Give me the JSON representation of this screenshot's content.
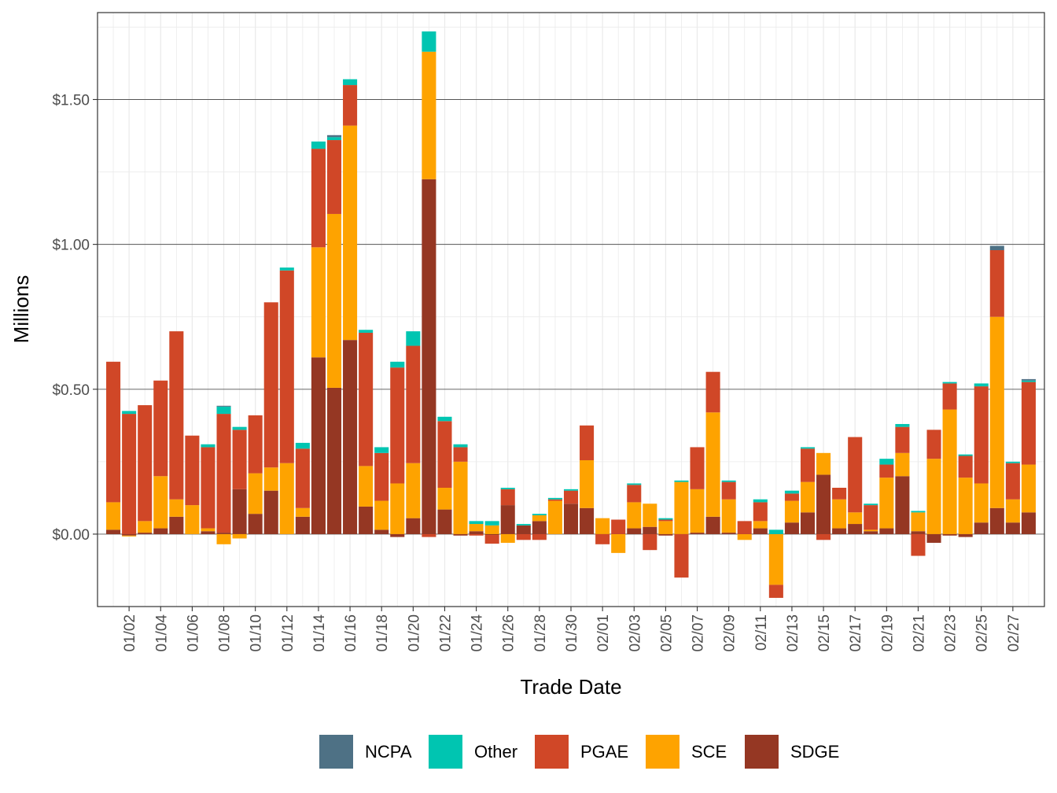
{
  "chart_data": {
    "type": "bar",
    "stacked": true,
    "title": "",
    "xlabel": "Trade Date",
    "ylabel": "Millions",
    "ylim": [
      -0.25,
      1.8
    ],
    "yticks": [
      0.0,
      0.5,
      1.0,
      1.5
    ],
    "ytick_labels": [
      "$0.00",
      "$0.50",
      "$1.00",
      "$1.50"
    ],
    "grid": true,
    "legend_position": "bottom",
    "categories": [
      "01/01",
      "01/02",
      "01/03",
      "01/04",
      "01/05",
      "01/06",
      "01/07",
      "01/08",
      "01/09",
      "01/10",
      "01/11",
      "01/12",
      "01/13",
      "01/14",
      "01/15",
      "01/16",
      "01/17",
      "01/18",
      "01/19",
      "01/20",
      "01/21",
      "01/22",
      "01/23",
      "01/24",
      "01/25",
      "01/26",
      "01/27",
      "01/28",
      "01/29",
      "01/30",
      "01/31",
      "02/01",
      "02/02",
      "02/03",
      "02/04",
      "02/05",
      "02/06",
      "02/07",
      "02/08",
      "02/09",
      "02/10",
      "02/11",
      "02/12",
      "02/13",
      "02/14",
      "02/15",
      "02/16",
      "02/17",
      "02/18",
      "02/19",
      "02/20",
      "02/21",
      "02/22",
      "02/23",
      "02/24",
      "02/25",
      "02/26",
      "02/27",
      "02/28"
    ],
    "x_tick_labels": [
      "01/02",
      "01/04",
      "01/06",
      "01/08",
      "01/10",
      "01/12",
      "01/14",
      "01/16",
      "01/18",
      "01/20",
      "01/22",
      "01/24",
      "01/26",
      "01/28",
      "01/30",
      "02/01",
      "02/03",
      "02/05",
      "02/07",
      "02/09",
      "02/11",
      "02/13",
      "02/15",
      "02/17",
      "02/19",
      "02/21",
      "02/23",
      "02/25",
      "02/27"
    ],
    "series": [
      {
        "name": "SDGE",
        "color": "#953723",
        "values": [
          0.015,
          -0.005,
          0.005,
          0.02,
          0.06,
          0.0,
          0.01,
          0.005,
          0.155,
          0.07,
          0.15,
          0.0,
          0.06,
          0.61,
          0.505,
          0.67,
          0.095,
          0.015,
          -0.01,
          0.055,
          1.225,
          0.085,
          -0.005,
          0.01,
          -0.003,
          0.1,
          0.03,
          0.045,
          0.0,
          0.105,
          0.09,
          0.0,
          0.0,
          0.02,
          0.025,
          -0.005,
          0.0,
          0.005,
          0.06,
          0.005,
          0.0,
          0.02,
          0.0,
          0.04,
          0.075,
          0.205,
          0.02,
          0.035,
          0.01,
          0.02,
          0.2,
          0.01,
          -0.03,
          -0.005,
          -0.01,
          0.04,
          0.09,
          0.04,
          0.075
        ]
      },
      {
        "name": "SCE",
        "color": "#fea300",
        "values": [
          0.095,
          -0.003,
          0.04,
          0.18,
          0.06,
          0.1,
          0.01,
          -0.035,
          -0.015,
          0.14,
          0.08,
          0.245,
          0.03,
          0.38,
          0.6,
          0.74,
          0.14,
          0.1,
          0.175,
          0.19,
          0.44,
          0.075,
          0.25,
          0.025,
          0.03,
          -0.03,
          0.0,
          0.02,
          0.115,
          0.0,
          0.165,
          0.055,
          -0.065,
          0.09,
          0.08,
          0.045,
          0.18,
          0.15,
          0.36,
          0.115,
          -0.02,
          0.025,
          -0.175,
          0.075,
          0.105,
          0.075,
          0.1,
          0.04,
          0.005,
          0.175,
          0.08,
          0.065,
          0.26,
          0.43,
          0.195,
          0.135,
          0.66,
          0.08,
          0.165
        ]
      },
      {
        "name": "PGAE",
        "color": "#d04727",
        "values": [
          0.485,
          0.415,
          0.4,
          0.33,
          0.58,
          0.24,
          0.28,
          0.41,
          0.205,
          0.2,
          0.57,
          0.665,
          0.205,
          0.34,
          0.255,
          0.14,
          0.46,
          0.165,
          0.4,
          0.405,
          -0.01,
          0.23,
          0.05,
          -0.005,
          -0.03,
          0.055,
          -0.02,
          -0.02,
          0.005,
          0.045,
          0.12,
          -0.035,
          0.05,
          0.06,
          -0.055,
          0.005,
          -0.15,
          0.145,
          0.14,
          0.06,
          0.045,
          0.065,
          -0.045,
          0.025,
          0.115,
          -0.02,
          0.04,
          0.26,
          0.085,
          0.045,
          0.09,
          -0.075,
          0.1,
          0.09,
          0.075,
          0.335,
          0.23,
          0.125,
          0.285
        ]
      },
      {
        "name": "Other",
        "color": "#00c5b1",
        "values": [
          0.0,
          0.01,
          0.0,
          0.0,
          0.0,
          0.0,
          0.01,
          0.025,
          0.01,
          0.0,
          0.0,
          0.01,
          0.02,
          0.025,
          0.01,
          0.02,
          0.01,
          0.02,
          0.02,
          0.05,
          0.07,
          0.015,
          0.01,
          0.01,
          0.015,
          0.005,
          0.005,
          0.005,
          0.005,
          0.005,
          0.0,
          0.0,
          0.0,
          0.005,
          0.0,
          0.005,
          0.005,
          0.0,
          0.0,
          0.005,
          0.0,
          0.01,
          0.015,
          0.01,
          0.005,
          0.0,
          0.0,
          0.0,
          0.005,
          0.02,
          0.01,
          0.005,
          0.0,
          0.005,
          0.005,
          0.01,
          0.0,
          0.005,
          0.005
        ]
      },
      {
        "name": "NCPA",
        "color": "#4e7185",
        "values": [
          0.0,
          0.0,
          0.0,
          0.0,
          0.0,
          0.0,
          0.0,
          0.003,
          0.0,
          0.0,
          0.0,
          0.0,
          0.0,
          0.0,
          0.007,
          0.0,
          0.0,
          0.0,
          0.0,
          0.0,
          0.0,
          0.0,
          0.0,
          0.0,
          0.0,
          0.0,
          0.0,
          0.0,
          0.0,
          0.0,
          0.0,
          0.0,
          0.0,
          0.0,
          0.0,
          0.0,
          0.0,
          0.0,
          0.0,
          0.0,
          0.0,
          0.0,
          0.0,
          0.0,
          0.0,
          0.0,
          0.0,
          0.0,
          0.0,
          0.0,
          0.0,
          0.0,
          0.0,
          0.0,
          0.0,
          0.0,
          0.015,
          0.0,
          0.005
        ]
      }
    ],
    "legend_order": [
      "NCPA",
      "Other",
      "PGAE",
      "SCE",
      "SDGE"
    ]
  }
}
